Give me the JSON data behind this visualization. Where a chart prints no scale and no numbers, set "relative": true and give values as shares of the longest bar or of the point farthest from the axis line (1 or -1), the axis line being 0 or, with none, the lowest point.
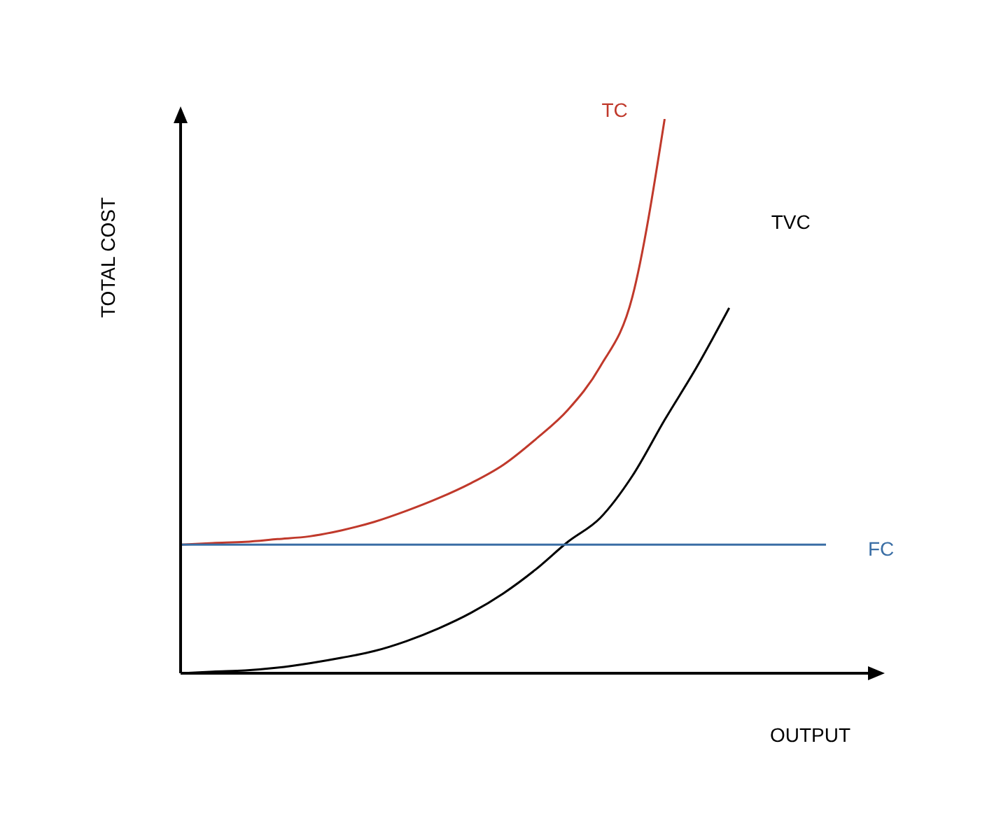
{
  "chart_data": {
    "type": "line",
    "relative": true,
    "xlabel": "OUTPUT",
    "ylabel": "TOTAL COST",
    "marker": "none",
    "categories": [
      null,
      null,
      null,
      null,
      null,
      null,
      null,
      null,
      null,
      null,
      null,
      null,
      null,
      null,
      null,
      null,
      null,
      null,
      null,
      null,
      null
    ],
    "series": [
      {
        "name": "TC",
        "color": "#c0392b",
        "values": [
          0.232,
          0.235,
          0.237,
          0.242,
          0.247,
          0.258,
          0.273,
          0.293,
          0.316,
          0.343,
          0.376,
          0.422,
          0.475,
          0.553,
          0.679,
          1,
          null,
          null,
          null,
          null,
          null
        ]
      },
      {
        "name": "TVC",
        "color": "#000000",
        "values": [
          0,
          0.003,
          0.005,
          0.01,
          0.018,
          0.028,
          0.04,
          0.058,
          0.081,
          0.109,
          0.144,
          0.187,
          0.237,
          0.28,
          0.356,
          0.457,
          0.553,
          0.659,
          null,
          null,
          null
        ]
      },
      {
        "name": "FC",
        "color": "#3a6ea5",
        "values": [
          0.232,
          0.232,
          0.232,
          0.232,
          0.232,
          0.232,
          0.232,
          0.232,
          0.232,
          0.232,
          0.232,
          0.232,
          0.232,
          0.232,
          0.232,
          0.232,
          0.232,
          0.232,
          0.232,
          0.232,
          0.232
        ]
      }
    ]
  }
}
